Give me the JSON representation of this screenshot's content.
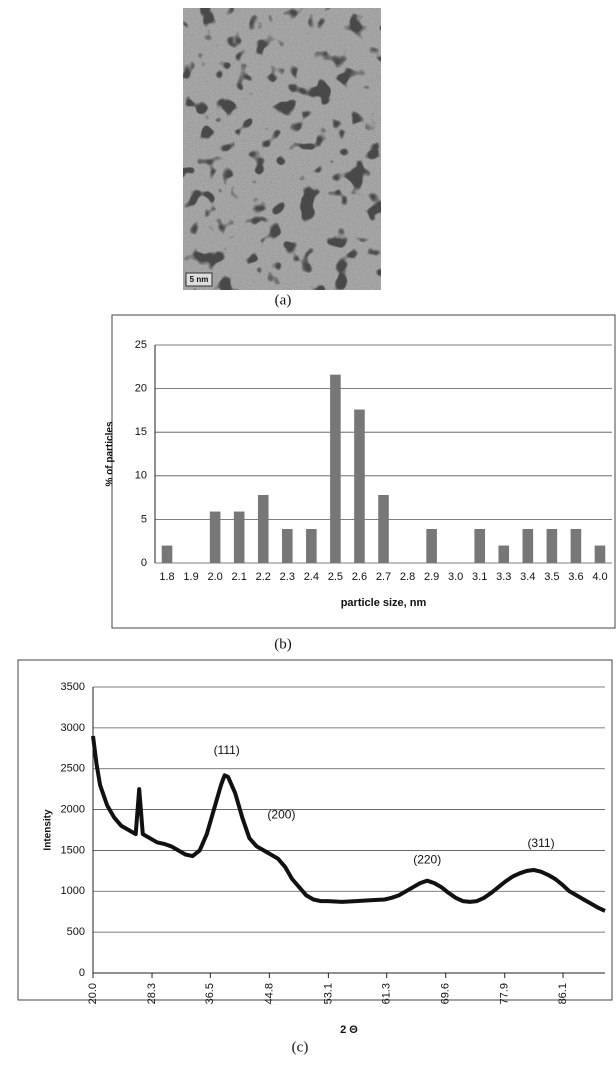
{
  "image": {
    "scale_bar": "5 nm"
  },
  "captions": [
    "(a)",
    "(b)",
    "(c)"
  ],
  "chart_data": [
    {
      "type": "bar",
      "x_label": "particle size, nm",
      "y_label": "% of particles",
      "categories": [
        "1.8",
        "1.9",
        "2.0",
        "2.1",
        "2.2",
        "2.3",
        "2.4",
        "2.5",
        "2.6",
        "2.7",
        "2.8",
        "2.9",
        "3.0",
        "3.1",
        "3.3",
        "3.4",
        "3.5",
        "3.6",
        "4.0"
      ],
      "values": [
        2,
        0,
        5.9,
        5.9,
        7.8,
        3.9,
        3.9,
        21.6,
        17.6,
        7.8,
        0,
        3.9,
        0,
        3.9,
        2,
        3.9,
        3.9,
        3.9,
        2
      ],
      "color": "#777777",
      "ylim": [
        0,
        25
      ],
      "yticks": [
        0,
        5,
        10,
        15,
        20,
        25
      ],
      "grid": true
    },
    {
      "type": "line",
      "x_label": "2 Θ",
      "y_label": "Intensity",
      "x": [
        20,
        20.5,
        21,
        22,
        23,
        24,
        25,
        26,
        26.5,
        27,
        28,
        29,
        30,
        31,
        32,
        33,
        34,
        35,
        36,
        37,
        38,
        38.5,
        39,
        40,
        41,
        42,
        43,
        44,
        45,
        46,
        47,
        48,
        49,
        50,
        51,
        52,
        53,
        55,
        57,
        59,
        61,
        62,
        63,
        64,
        65,
        66,
        67,
        68,
        69,
        70,
        71,
        72,
        73,
        74,
        75,
        76,
        77,
        78,
        79,
        80,
        81,
        82,
        83,
        84,
        85,
        86,
        87,
        88,
        89,
        90,
        91,
        92
      ],
      "series": [
        {
          "color": "#111111",
          "values": [
            2900,
            2550,
            2300,
            2050,
            1900,
            1800,
            1750,
            1700,
            2250,
            1700,
            1650,
            1600,
            1580,
            1550,
            1500,
            1450,
            1430,
            1500,
            1700,
            2000,
            2300,
            2420,
            2400,
            2200,
            1900,
            1650,
            1550,
            1500,
            1450,
            1400,
            1300,
            1150,
            1050,
            950,
            900,
            880,
            880,
            870,
            880,
            890,
            900,
            920,
            950,
            1000,
            1050,
            1100,
            1130,
            1100,
            1050,
            980,
            920,
            880,
            870,
            880,
            920,
            980,
            1050,
            1120,
            1180,
            1220,
            1250,
            1260,
            1240,
            1200,
            1150,
            1080,
            1000,
            950,
            900,
            850,
            800,
            760
          ]
        }
      ],
      "annotations": [
        {
          "text": "(111)",
          "x": 38.8,
          "y": 2720
        },
        {
          "text": "(200)",
          "x": 46.5,
          "y": 1930
        },
        {
          "text": "(220)",
          "x": 67,
          "y": 1380
        },
        {
          "text": "(311)",
          "x": 83,
          "y": 1580
        }
      ],
      "xlim": [
        20,
        92
      ],
      "xticks": [
        {
          "value": 20,
          "label": "20.0"
        },
        28.3,
        36.5,
        44.8,
        53.1,
        61.3,
        69.6,
        77.9,
        86.1
      ],
      "ylim": [
        0,
        3500
      ],
      "yticks": [
        0,
        500,
        1000,
        1500,
        2000,
        2500,
        3000,
        3500
      ],
      "grid": true
    }
  ]
}
